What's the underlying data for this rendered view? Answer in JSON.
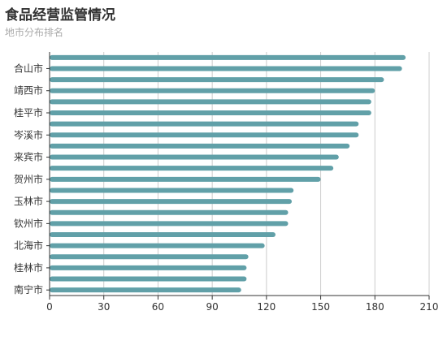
{
  "header": {
    "title": "食品经营监管情况",
    "subtitle": "地市分布排名"
  },
  "colors": {
    "bar": "#61a0a8",
    "grid": "#cccccc",
    "axis": "#333333"
  },
  "chart_data": {
    "type": "bar",
    "orientation": "horizontal",
    "title": "食品经营监管情况",
    "subtitle": "地市分布排名",
    "xlim": [
      0,
      210
    ],
    "x_ticks": [
      0,
      30,
      60,
      90,
      120,
      150,
      180,
      210
    ],
    "grid": "vertical",
    "categories": [
      "南宁市",
      "",
      "桂林市",
      "",
      "北海市",
      "",
      "钦州市",
      "",
      "玉林市",
      "",
      "贺州市",
      "",
      "来宾市",
      "",
      "岑溪市",
      "",
      "桂平市",
      "",
      "靖西市",
      "",
      "合山市",
      ""
    ],
    "values": [
      106,
      109,
      109,
      110,
      119,
      125,
      132,
      132,
      134,
      135,
      150,
      157,
      160,
      166,
      171,
      171,
      178,
      178,
      180,
      185,
      195,
      197
    ]
  }
}
